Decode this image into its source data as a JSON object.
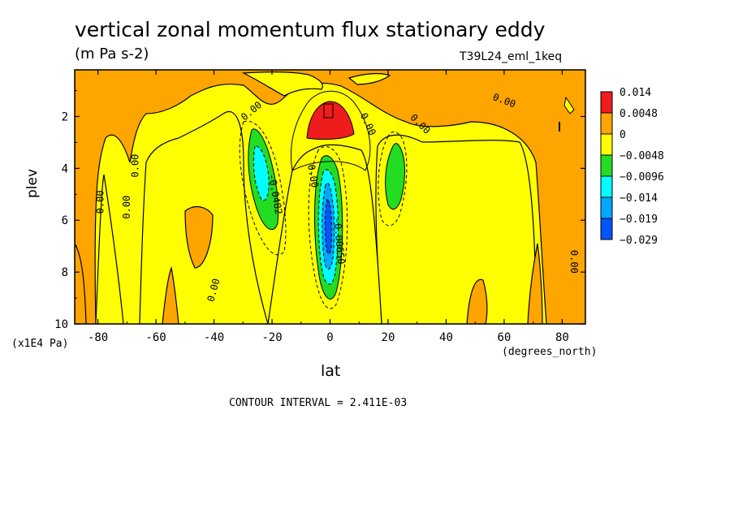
{
  "chart_data": {
    "type": "contour",
    "title": "vertical zonal momentum flux stationary eddy",
    "units": "(m Pa s-2)",
    "run_id": "T39L24_eml_1keq",
    "xlabel": "lat",
    "xunits": "(degrees_north)",
    "ylabel": "plev",
    "yunits": "(x1E4 Pa)",
    "xlim": [
      -88,
      88
    ],
    "ylim": [
      10,
      0.2
    ],
    "xticks": [
      -80,
      -60,
      -40,
      -20,
      0,
      20,
      40,
      60,
      80
    ],
    "xtick_labels": [
      "-80",
      "-60",
      "-40",
      "-20",
      "0",
      "20",
      "40",
      "60",
      "80"
    ],
    "yticks": [
      2,
      4,
      6,
      8,
      10
    ],
    "ytick_labels": [
      "2",
      "4",
      "6",
      "8",
      "10"
    ],
    "contour_interval_label": "CONTOUR INTERVAL = 2.411E-03",
    "legend": {
      "placement": "right",
      "levels": [
        "0.014",
        "0.0048",
        "0",
        "−0.0048",
        "−0.0096",
        "−0.014",
        "−0.019",
        "−0.029"
      ],
      "colors": [
        "#ee1c1c",
        "#ffa500",
        "#ffff00",
        "#22dd22",
        "#00ffff",
        "#00a8ff",
        "#0055ff"
      ]
    },
    "contour_labels": [
      {
        "text": "0.00",
        "lat": -27,
        "plev": 1.8,
        "angle": -40
      },
      {
        "text": "0.00",
        "lat": -79,
        "plev": 5.3,
        "angle": -90
      },
      {
        "text": "0.00",
        "lat": -70,
        "plev": 5.5,
        "angle": -90
      },
      {
        "text": "0.00",
        "lat": -67,
        "plev": 3.9,
        "angle": -90
      },
      {
        "text": "0.00",
        "lat": -40,
        "plev": 8.7,
        "angle": -75
      },
      {
        "text": "-0.0482",
        "lat": -19,
        "plev": 5.0,
        "angle": 80
      },
      {
        "text": "0.00",
        "lat": 13,
        "plev": 2.3,
        "angle": 65
      },
      {
        "text": "0.00",
        "lat": 31,
        "plev": 2.3,
        "angle": 45
      },
      {
        "text": "0.00",
        "lat": -6,
        "plev": 4.3,
        "angle": 80
      },
      {
        "text": "-0.00650",
        "lat": 3,
        "plev": 6.8,
        "angle": 85
      },
      {
        "text": "0.00",
        "lat": 60,
        "plev": 1.4,
        "angle": 20
      },
      {
        "text": "0.00",
        "lat": 84,
        "plev": 7.6,
        "angle": 90
      }
    ]
  }
}
